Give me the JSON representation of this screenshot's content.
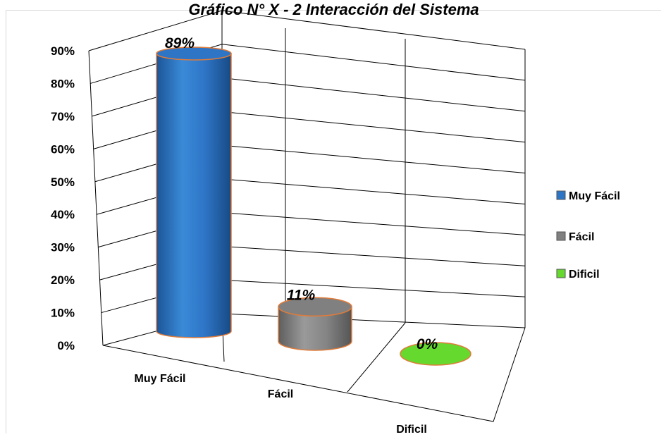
{
  "chart_data": {
    "type": "bar",
    "title": "Gráfico N° X - 2 Interacción del Sistema",
    "categories": [
      "Muy Fácil",
      "Fácil",
      "Dificil"
    ],
    "values": [
      89,
      11,
      0
    ],
    "value_labels": [
      "89%",
      "11%",
      "0%"
    ],
    "ylim": [
      0,
      90
    ],
    "yticks": [
      0,
      10,
      20,
      30,
      40,
      50,
      60,
      70,
      80,
      90
    ],
    "ytick_labels": [
      "0%",
      "10%",
      "20%",
      "30%",
      "40%",
      "50%",
      "60%",
      "70%",
      "80%",
      "90%"
    ],
    "grid": true,
    "legend_position": "right",
    "legend": [
      "Muy Fácil",
      "Fácil",
      "Dificil"
    ],
    "colors": [
      "#2e75c6",
      "#808080",
      "#66d92e"
    ],
    "edge_color": "#e07b39",
    "style": "3d-cylinder"
  }
}
